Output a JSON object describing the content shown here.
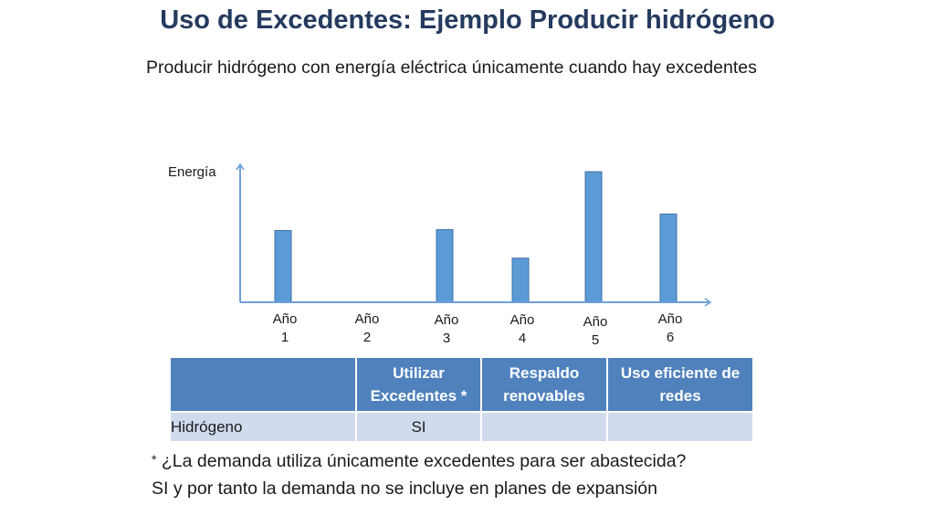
{
  "slide": {
    "title": "Uso de Excedentes: Ejemplo Producir hidrógeno",
    "subtitle": "Producir hidrógeno con energía eléctrica únicamente cuando hay excedentes"
  },
  "chart_data": {
    "type": "bar",
    "ylabel": "Energía",
    "xlabel": "",
    "categories": [
      "Año 1",
      "Año 2",
      "Año 3",
      "Año 4",
      "Año 5",
      "Año 6"
    ],
    "tick_lines": [
      [
        "Año",
        "1"
      ],
      [
        "Año",
        "2"
      ],
      [
        "Año",
        "3"
      ],
      [
        "Año",
        "4"
      ],
      [
        "Año",
        "5"
      ],
      [
        "Año",
        "6"
      ]
    ],
    "values": [
      78,
      0,
      79,
      48,
      142,
      96
    ],
    "ylim": [
      0,
      150
    ],
    "grid": false,
    "bar_color": "#5b9bd5",
    "axis_color": "#6fa0d8"
  },
  "table": {
    "headers": [
      "",
      "Utilizar Excedentes *",
      "Respaldo renovables",
      "Uso eficiente de redes"
    ],
    "rows": [
      [
        "Hidrógeno",
        "SI",
        "",
        ""
      ]
    ],
    "header_color": "#4f81bd",
    "cell_color": "#d0dbee"
  },
  "note": {
    "asterisk": "*",
    "line1": "¿La demanda utiliza únicamente excedentes para ser abastecida?",
    "line2": "SI y por tanto la demanda no se incluye en planes de expansión"
  }
}
